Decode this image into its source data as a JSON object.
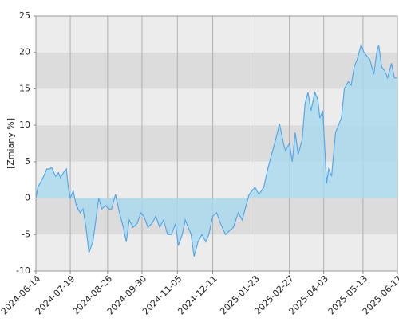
{
  "chart_data": {
    "type": "area",
    "y_label": "[Zmiany %]",
    "ylim": [
      -10,
      25
    ],
    "yticks": [
      -10,
      -5,
      0,
      5,
      10,
      15,
      20,
      25
    ],
    "xlim": [
      "2024-06-14",
      "2025-06-17"
    ],
    "xticks": [
      "2024-06-14",
      "2024-07-19",
      "2024-08-26",
      "2024-09-30",
      "2024-11-05",
      "2024-12-11",
      "2025-01-23",
      "2025-02-27",
      "2025-04-03",
      "2025-05-13",
      "2025-06-17"
    ],
    "grid": true,
    "line_color": "#55a8ea",
    "fill_color": "#a9d9ee",
    "x": [
      "2024-06-14",
      "2024-06-16",
      "2024-06-20",
      "2024-06-22",
      "2024-06-25",
      "2024-06-28",
      "2024-06-30",
      "2024-07-04",
      "2024-07-07",
      "2024-07-09",
      "2024-07-12",
      "2024-07-15",
      "2024-07-17",
      "2024-07-19",
      "2024-07-22",
      "2024-07-25",
      "2024-07-29",
      "2024-08-01",
      "2024-08-04",
      "2024-08-07",
      "2024-08-11",
      "2024-08-14",
      "2024-08-17",
      "2024-08-20",
      "2024-08-24",
      "2024-08-27",
      "2024-08-30",
      "2024-09-03",
      "2024-09-07",
      "2024-09-11",
      "2024-09-14",
      "2024-09-17",
      "2024-09-21",
      "2024-09-25",
      "2024-09-29",
      "2024-10-02",
      "2024-10-06",
      "2024-10-10",
      "2024-10-14",
      "2024-10-18",
      "2024-10-22",
      "2024-10-26",
      "2024-10-30",
      "2024-11-03",
      "2024-11-06",
      "2024-11-10",
      "2024-11-13",
      "2024-11-16",
      "2024-11-19",
      "2024-11-22",
      "2024-11-26",
      "2024-11-30",
      "2024-12-04",
      "2024-12-07",
      "2024-12-11",
      "2024-12-15",
      "2024-12-19",
      "2024-12-24",
      "2024-12-28",
      "2025-01-01",
      "2025-01-06",
      "2025-01-10",
      "2025-01-14",
      "2025-01-17",
      "2025-01-20",
      "2025-01-23",
      "2025-01-27",
      "2025-02-01",
      "2025-02-05",
      "2025-02-09",
      "2025-02-13",
      "2025-02-17",
      "2025-02-21",
      "2025-02-23",
      "2025-02-27",
      "2025-03-02",
      "2025-03-05",
      "2025-03-08",
      "2025-03-12",
      "2025-03-15",
      "2025-03-18",
      "2025-03-21",
      "2025-03-25",
      "2025-03-28",
      "2025-03-30",
      "2025-04-02",
      "2025-04-06",
      "2025-04-08",
      "2025-04-11",
      "2025-04-15",
      "2025-04-18",
      "2025-04-21",
      "2025-04-24",
      "2025-04-28",
      "2025-05-01",
      "2025-05-04",
      "2025-05-07",
      "2025-05-11",
      "2025-05-14",
      "2025-05-17",
      "2025-05-20",
      "2025-05-24",
      "2025-05-27",
      "2025-05-29",
      "2025-06-01",
      "2025-06-04",
      "2025-06-07",
      "2025-06-11",
      "2025-06-14",
      "2025-06-17"
    ],
    "values": [
      0,
      1.5,
      2.5,
      3,
      4,
      4,
      4.2,
      3,
      3.5,
      2.8,
      3.5,
      4,
      1.5,
      0,
      1,
      -1,
      -2,
      -1.5,
      -4,
      -7.5,
      -6,
      -3,
      0,
      -1.5,
      -1,
      -1.5,
      -1.5,
      0.5,
      -2,
      -4,
      -6,
      -3,
      -4,
      -3.5,
      -2,
      -2.5,
      -4,
      -3.5,
      -2.5,
      -4,
      -3,
      -5,
      -5,
      -3.5,
      -6.5,
      -5,
      -3,
      -4,
      -5,
      -8,
      -6,
      -5,
      -6,
      -5,
      -2.5,
      -2,
      -3.5,
      -5,
      -4.5,
      -4,
      -2,
      -3,
      -1,
      0.5,
      1,
      1.5,
      0.5,
      1.5,
      4,
      6,
      8,
      10.2,
      7.5,
      6.5,
      7.5,
      5,
      9,
      6,
      8,
      13,
      14.5,
      12,
      14.5,
      13.5,
      11,
      12,
      2,
      4,
      3,
      9,
      10,
      11,
      15,
      16,
      15.5,
      18,
      19,
      21,
      20,
      19.5,
      19,
      17,
      20,
      21,
      18,
      17.5,
      16.5,
      18.5,
      16.5,
      16.5
    ]
  }
}
